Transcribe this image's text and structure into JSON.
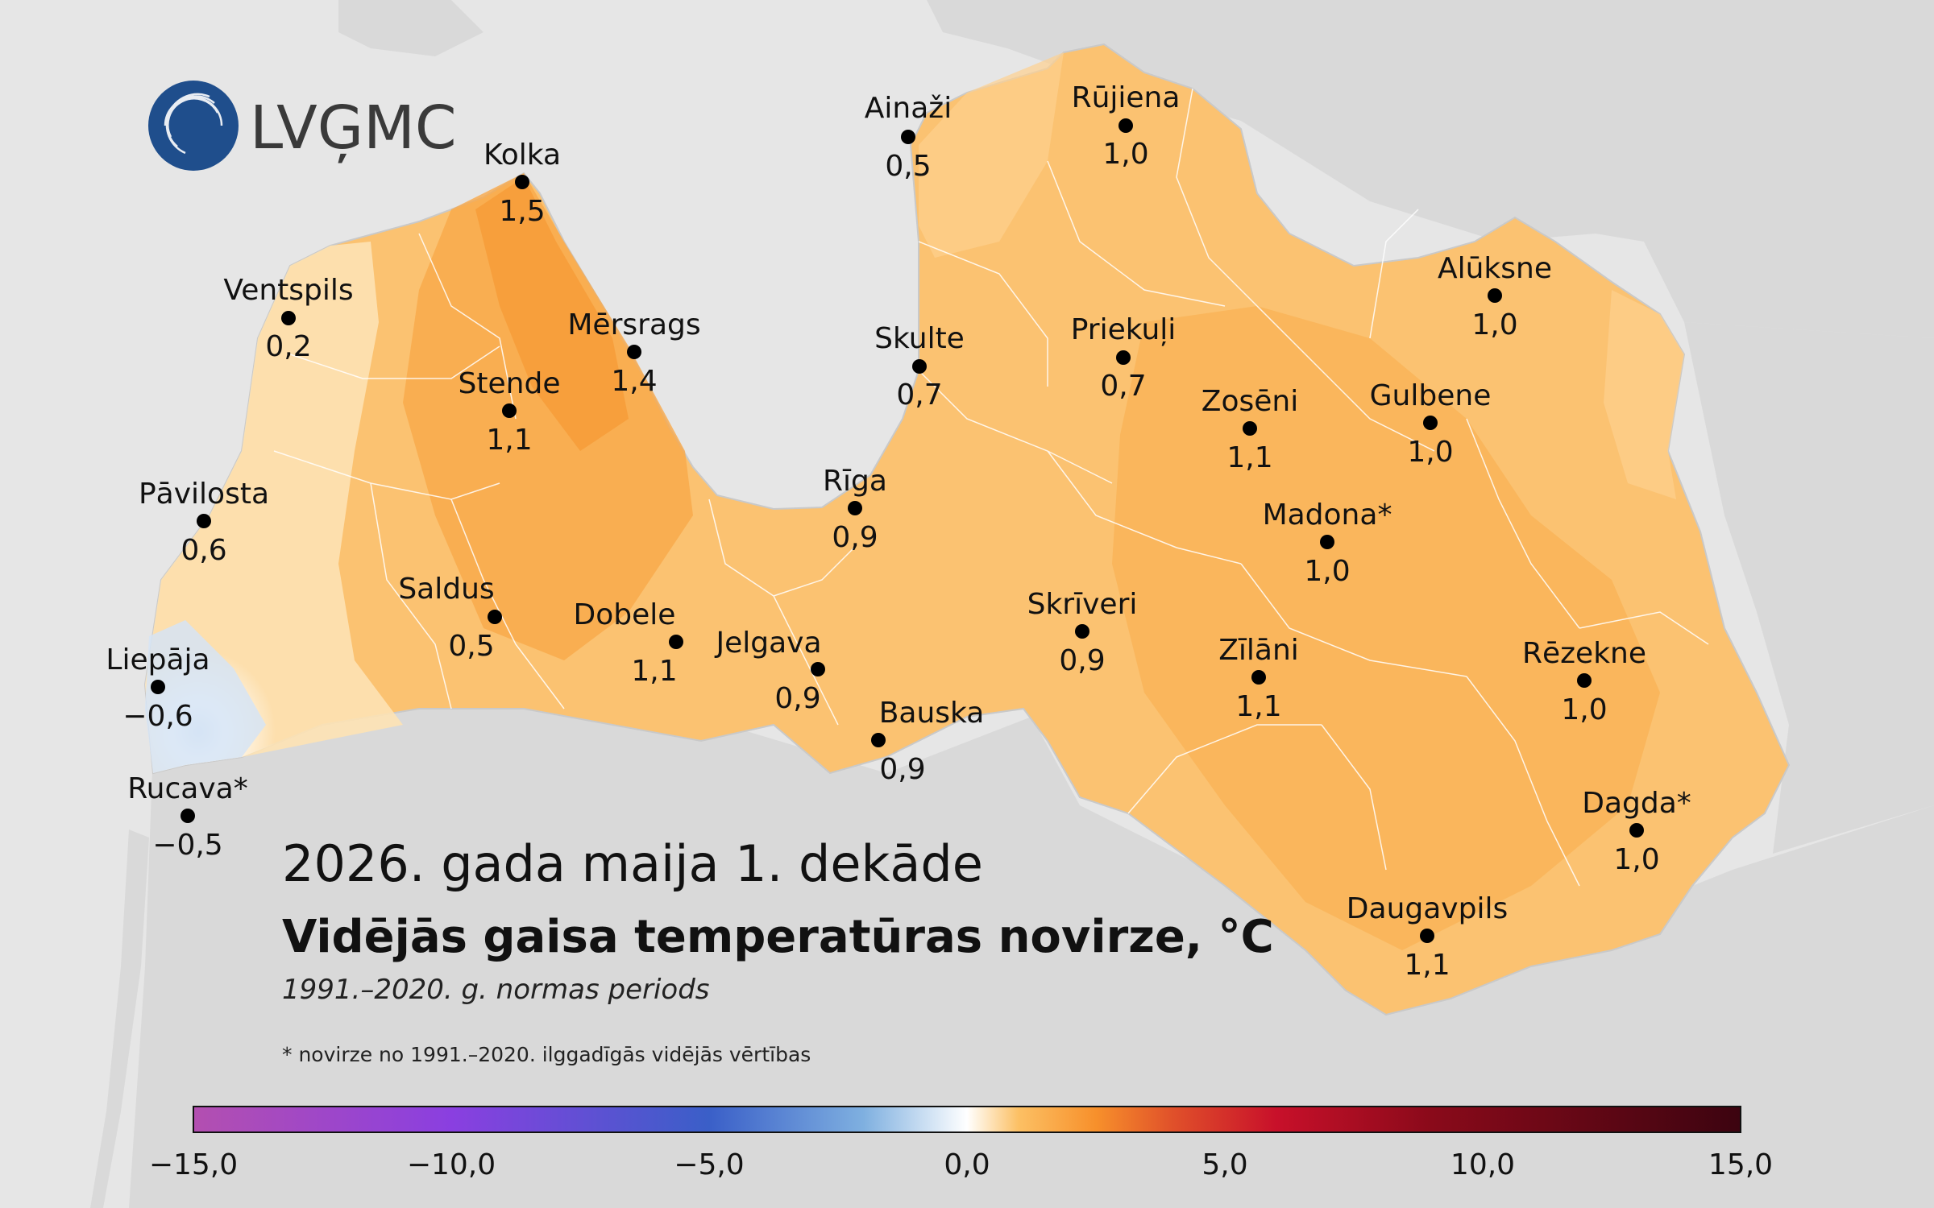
{
  "logo": {
    "text": "LVĢMC"
  },
  "title": {
    "line1": "2026. gada maija 1. dekāde",
    "line2": "Vidējās gaisa temperatūras novirze, °C",
    "line3": "1991.–2020. g. normas periods"
  },
  "footnote": "* novirze no 1991.–2020. ilggadīgās vidējās vērtības",
  "colors": {
    "sea": "#e6e6e6",
    "land_outside": "#d9d9d9",
    "latvia_base": "#fbc271",
    "border": "#ffffff"
  },
  "stations": [
    {
      "name": "Ainaži",
      "value": "0,5"
    },
    {
      "name": "Rūjiena",
      "value": "1,0"
    },
    {
      "name": "Kolka",
      "value": "1,5"
    },
    {
      "name": "Ventspils",
      "value": "0,2"
    },
    {
      "name": "Mērsrags",
      "value": "1,4"
    },
    {
      "name": "Skulte",
      "value": "0,7"
    },
    {
      "name": "Priekuļi",
      "value": "0,7"
    },
    {
      "name": "Alūksne",
      "value": "1,0"
    },
    {
      "name": "Stende",
      "value": "1,1"
    },
    {
      "name": "Zosēni",
      "value": "1,1"
    },
    {
      "name": "Gulbene",
      "value": "1,0"
    },
    {
      "name": "Pāvilosta",
      "value": "0,6"
    },
    {
      "name": "Rīga",
      "value": "0,9"
    },
    {
      "name": "Madona*",
      "value": "1,0"
    },
    {
      "name": "Saldus",
      "value": "0,5"
    },
    {
      "name": "Dobele",
      "value": "1,1"
    },
    {
      "name": "Skrīveri",
      "value": "0,9"
    },
    {
      "name": "Jelgava",
      "value": "0,9"
    },
    {
      "name": "Zīlāni",
      "value": "1,1"
    },
    {
      "name": "Rēzekne",
      "value": "1,0"
    },
    {
      "name": "Liepāja",
      "value": "−0,6"
    },
    {
      "name": "Bauska",
      "value": "0,9"
    },
    {
      "name": "Rucava*",
      "value": "−0,5"
    },
    {
      "name": "Dagda*",
      "value": "1,0"
    },
    {
      "name": "Daugavpils",
      "value": "1,1"
    }
  ],
  "colorbar": {
    "min": -15,
    "max": 15,
    "ticks": [
      "−15,0",
      "−10,0",
      "−5,0",
      "0,0",
      "5,0",
      "10,0",
      "15,0"
    ],
    "stops": [
      {
        "value": -15,
        "color": "#b34fb0"
      },
      {
        "value": -10,
        "color": "#8a3fe0"
      },
      {
        "value": -5,
        "color": "#3a5fc8"
      },
      {
        "value": -2,
        "color": "#7fb0e0"
      },
      {
        "value": 0,
        "color": "#ffffff"
      },
      {
        "value": 1,
        "color": "#fcc064"
      },
      {
        "value": 2.5,
        "color": "#f7902b"
      },
      {
        "value": 4,
        "color": "#e0502a"
      },
      {
        "value": 6,
        "color": "#c8102a"
      },
      {
        "value": 9,
        "color": "#8a0a1a"
      },
      {
        "value": 15,
        "color": "#3c0410"
      }
    ]
  }
}
